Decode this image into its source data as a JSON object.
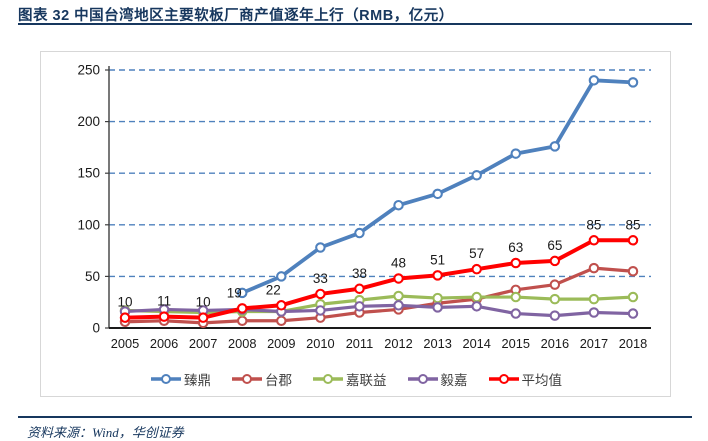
{
  "header": {
    "title": "图表 32  中国台湾地区主要软板厂商产值逐年上行（RMB，亿元）"
  },
  "footer": {
    "source": "资料来源：Wind，华创证券"
  },
  "colors": {
    "title_navy": "#17375E",
    "gridline_blue": "#4F81BD",
    "axis_dark": "#3f3f3f",
    "label_black": "#1a1a1a",
    "box_border": "#d7d7d7"
  },
  "chart_data": {
    "type": "line",
    "title": "中国台湾地区主要软板厂商产值逐年上行（RMB，亿元）",
    "categories": [
      "2005",
      "2006",
      "2007",
      "2008",
      "2009",
      "2010",
      "2011",
      "2012",
      "2013",
      "2014",
      "2015",
      "2016",
      "2017",
      "2018"
    ],
    "series": [
      {
        "name": "臻鼎",
        "color": "#4F81BD",
        "line_width": 3.8,
        "values": [
          null,
          null,
          null,
          34,
          50,
          78,
          92,
          119,
          130,
          148,
          169,
          176,
          240,
          238
        ]
      },
      {
        "name": "台郡",
        "color": "#C0504D",
        "line_width": 3.2,
        "values": [
          6,
          7,
          5,
          7,
          7,
          10,
          15,
          18,
          24,
          28,
          37,
          42,
          58,
          55
        ]
      },
      {
        "name": "嘉联益",
        "color": "#9BBB59",
        "line_width": 3.2,
        "values": [
          17,
          16,
          15,
          16,
          16,
          23,
          27,
          31,
          29,
          30,
          30,
          28,
          28,
          30
        ]
      },
      {
        "name": "毅嘉",
        "color": "#8064A2",
        "line_width": 3.2,
        "values": [
          16,
          18,
          17,
          18,
          16,
          17,
          21,
          22,
          20,
          21,
          14,
          12,
          15,
          14
        ]
      },
      {
        "name": "平均值",
        "color": "#FF0000",
        "line_width": 4,
        "show_labels": true,
        "values": [
          10,
          11,
          10,
          19,
          22,
          33,
          38,
          48,
          51,
          57,
          63,
          65,
          85,
          85
        ]
      }
    ],
    "ylim": [
      0,
      250
    ],
    "yticks": [
      0,
      50,
      100,
      150,
      200,
      250
    ],
    "grid": "horizontal-dashed",
    "legend_position": "bottom",
    "marker": "open-circle"
  }
}
